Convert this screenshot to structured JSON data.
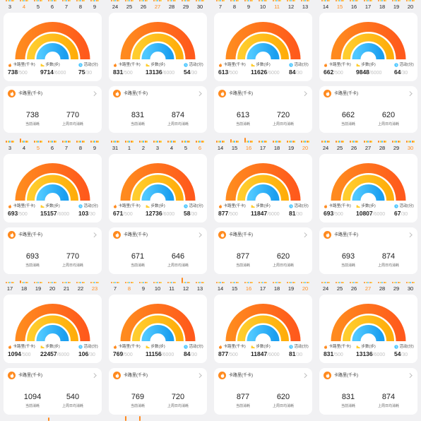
{
  "labels": {
    "calorie": "卡路里(千卡)",
    "steps": "步数(步)",
    "activity": "活动(分)",
    "calorie_goal": "/500",
    "steps_goal": "/6000",
    "activity_goal": "/30",
    "current": "当前消耗",
    "last_week_avg": "上周日均消耗"
  },
  "colors": {
    "calorie": "#ff8a1e",
    "calorie_deep": "#ff5a1c",
    "steps": "#ffcd2e",
    "steps_deep": "#ffad0a",
    "activity": "#4fc8ff",
    "activity_deep": "#1b9ff0",
    "highlight_date": "#ff8a1a"
  },
  "icons": [
    "flame-icon",
    "shoe-icon",
    "clock-icon",
    "chevron-right-icon"
  ],
  "tiles": [
    {
      "dates": [
        "3",
        "4",
        "5",
        "6",
        "7",
        "8",
        "9"
      ],
      "highlight": [
        false,
        true,
        false,
        false,
        false,
        false,
        false
      ],
      "calories": "738",
      "steps": "9714",
      "activity": "75",
      "current": "738",
      "last_week_avg": "770"
    },
    {
      "dates": [
        "24",
        "25",
        "26",
        "27",
        "28",
        "29",
        "30"
      ],
      "highlight": [
        false,
        false,
        false,
        true,
        false,
        false,
        false
      ],
      "calories": "831",
      "steps": "13136",
      "activity": "54",
      "current": "831",
      "last_week_avg": "874"
    },
    {
      "dates": [
        "7",
        "8",
        "9",
        "10",
        "11",
        "12",
        "13"
      ],
      "highlight": [
        false,
        false,
        false,
        false,
        true,
        false,
        false
      ],
      "calories": "613",
      "steps": "11626",
      "activity": "84",
      "current": "613",
      "last_week_avg": "720"
    },
    {
      "dates": [
        "14",
        "15",
        "16",
        "17",
        "18",
        "19",
        "20"
      ],
      "highlight": [
        false,
        true,
        false,
        false,
        false,
        false,
        false
      ],
      "calories": "662",
      "steps": "9848",
      "activity": "64",
      "current": "662",
      "last_week_avg": "620"
    },
    {
      "dates": [
        "3",
        "4",
        "5",
        "6",
        "7",
        "8",
        "9"
      ],
      "highlight": [
        false,
        false,
        true,
        false,
        false,
        false,
        false
      ],
      "calories": "693",
      "steps": "15157",
      "activity": "103",
      "current": "693",
      "last_week_avg": "770"
    },
    {
      "dates": [
        "31",
        "1",
        "2",
        "3",
        "4",
        "5",
        "6"
      ],
      "highlight": [
        false,
        false,
        false,
        false,
        false,
        false,
        true
      ],
      "calories": "671",
      "steps": "12736",
      "activity": "58",
      "current": "671",
      "last_week_avg": "646"
    },
    {
      "dates": [
        "14",
        "15",
        "16",
        "17",
        "18",
        "19",
        "20"
      ],
      "highlight": [
        false,
        false,
        true,
        false,
        false,
        false,
        true
      ],
      "calories": "877",
      "steps": "11847",
      "activity": "81",
      "current": "877",
      "last_week_avg": "620"
    },
    {
      "dates": [
        "24",
        "25",
        "26",
        "27",
        "28",
        "29",
        "30"
      ],
      "highlight": [
        false,
        false,
        false,
        false,
        false,
        false,
        true
      ],
      "calories": "693",
      "steps": "10807",
      "activity": "67",
      "current": "693",
      "last_week_avg": "874"
    },
    {
      "dates": [
        "17",
        "18",
        "19",
        "20",
        "21",
        "22",
        "23"
      ],
      "highlight": [
        false,
        false,
        false,
        false,
        false,
        false,
        true
      ],
      "calories": "1094",
      "steps": "22457",
      "activity": "106",
      "current": "1094",
      "last_week_avg": "540"
    },
    {
      "dates": [
        "7",
        "8",
        "9",
        "10",
        "11",
        "12",
        "13"
      ],
      "highlight": [
        false,
        true,
        false,
        false,
        false,
        false,
        false
      ],
      "calories": "769",
      "steps": "11156",
      "activity": "84",
      "current": "769",
      "last_week_avg": "720"
    },
    {
      "dates": [
        "14",
        "15",
        "16",
        "17",
        "18",
        "19",
        "20"
      ],
      "highlight": [
        false,
        false,
        true,
        false,
        false,
        false,
        true
      ],
      "calories": "877",
      "steps": "11847",
      "activity": "81",
      "current": "877",
      "last_week_avg": "620"
    },
    {
      "dates": [
        "24",
        "25",
        "26",
        "27",
        "28",
        "29",
        "30"
      ],
      "highlight": [
        false,
        false,
        false,
        true,
        false,
        false,
        false
      ],
      "calories": "831",
      "steps": "13136",
      "activity": "54",
      "current": "831",
      "last_week_avg": "874"
    }
  ]
}
